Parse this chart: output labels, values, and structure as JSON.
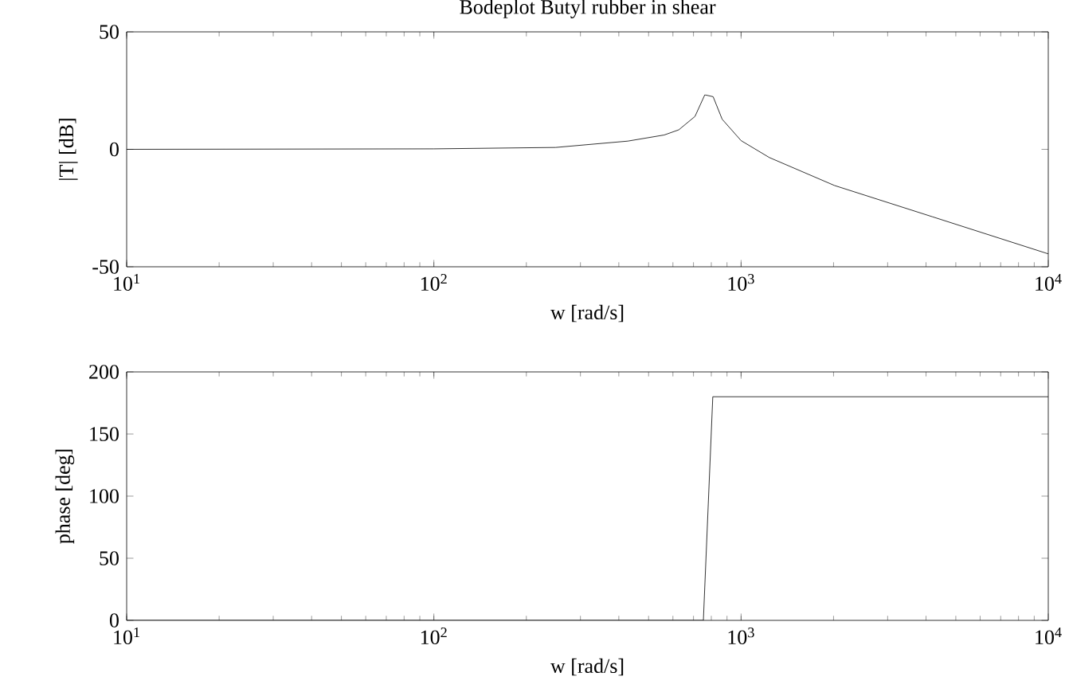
{
  "chart_data": [
    {
      "type": "line",
      "title": "Bodeplot Butyl rubber in shear",
      "xlabel": "w  [rad/s]",
      "ylabel": "|T|  [dB]",
      "log": "x",
      "xlim": [
        10,
        10000
      ],
      "ylim": [
        -50,
        50
      ],
      "xticks": [
        {
          "value": 10,
          "label": "10$^{1}$"
        },
        {
          "value": 100,
          "label": "10$^{2}$"
        },
        {
          "value": 1000,
          "label": "10$^{3}$"
        },
        {
          "value": 10000,
          "label": "10$^{4}$"
        }
      ],
      "yticks": [
        -50,
        0,
        50
      ],
      "series": [
        {
          "color": "#000000",
          "x": [
            10,
            100,
            249,
            428,
            562,
            627,
            708,
            762,
            811,
            868,
            1000,
            1236,
            2014,
            4194,
            10000
          ],
          "values": [
            0,
            0.2,
            0.8,
            3.5,
            6.1,
            8.3,
            14,
            23.2,
            22.4,
            12.8,
            3.7,
            -3.5,
            -15.4,
            -28.7,
            -44.5
          ]
        }
      ]
    },
    {
      "type": "line",
      "xlabel": "w  [rad/s]",
      "ylabel": "phase  [deg]",
      "log": "x",
      "xlim": [
        10,
        10000
      ],
      "ylim": [
        0,
        200
      ],
      "xticks": [
        {
          "value": 10,
          "label": "10$^{1}$"
        },
        {
          "value": 100,
          "label": "10$^{2}$"
        },
        {
          "value": 1000,
          "label": "10$^{3}$"
        },
        {
          "value": 10000,
          "label": "10$^{4}$"
        }
      ],
      "yticks": [
        0,
        50,
        100,
        150,
        200
      ],
      "series": [
        {
          "color": "#000000",
          "x": [
            10,
            754,
            809,
            10000
          ],
          "values": [
            0,
            0,
            180,
            180
          ]
        }
      ]
    }
  ]
}
